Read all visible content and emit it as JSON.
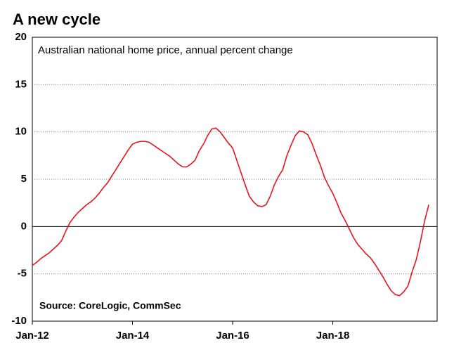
{
  "chart_data": {
    "type": "line",
    "title": "A new cycle",
    "subtitle": "Australian national home price, annual percent change",
    "annotation": "Source: CoreLogic, CommSec",
    "x": [
      "2012-01",
      "2012-02",
      "2012-03",
      "2012-04",
      "2012-05",
      "2012-06",
      "2012-07",
      "2012-08",
      "2012-09",
      "2012-10",
      "2012-11",
      "2012-12",
      "2013-01",
      "2013-02",
      "2013-03",
      "2013-04",
      "2013-05",
      "2013-06",
      "2013-07",
      "2013-08",
      "2013-09",
      "2013-10",
      "2013-11",
      "2013-12",
      "2014-01",
      "2014-02",
      "2014-03",
      "2014-04",
      "2014-05",
      "2014-06",
      "2014-07",
      "2014-08",
      "2014-09",
      "2014-10",
      "2014-11",
      "2014-12",
      "2015-01",
      "2015-02",
      "2015-03",
      "2015-04",
      "2015-05",
      "2015-06",
      "2015-07",
      "2015-08",
      "2015-09",
      "2015-10",
      "2015-11",
      "2015-12",
      "2016-01",
      "2016-02",
      "2016-03",
      "2016-04",
      "2016-05",
      "2016-06",
      "2016-07",
      "2016-08",
      "2016-09",
      "2016-10",
      "2016-11",
      "2016-12",
      "2017-01",
      "2017-02",
      "2017-03",
      "2017-04",
      "2017-05",
      "2017-06",
      "2017-07",
      "2017-08",
      "2017-09",
      "2017-10",
      "2017-11",
      "2017-12",
      "2018-01",
      "2018-02",
      "2018-03",
      "2018-04",
      "2018-05",
      "2018-06",
      "2018-07",
      "2018-08",
      "2018-09",
      "2018-10",
      "2018-11",
      "2018-12",
      "2019-01",
      "2019-02",
      "2019-03",
      "2019-04",
      "2019-05",
      "2019-06",
      "2019-07",
      "2019-08",
      "2019-09",
      "2019-10",
      "2019-11",
      "2019-12"
    ],
    "series": [
      {
        "color": "#e8141c",
        "values": [
          -4.1,
          -3.8,
          -3.4,
          -3.1,
          -2.8,
          -2.4,
          -2.0,
          -1.5,
          -0.5,
          0.4,
          1.0,
          1.5,
          1.9,
          2.3,
          2.6,
          3.0,
          3.5,
          4.1,
          4.6,
          5.3,
          6.0,
          6.7,
          7.4,
          8.1,
          8.7,
          8.9,
          9.0,
          9.0,
          8.9,
          8.6,
          8.3,
          8.0,
          7.7,
          7.4,
          7.0,
          6.6,
          6.3,
          6.3,
          6.6,
          7.0,
          8.0,
          8.7,
          9.6,
          10.3,
          10.4,
          10.0,
          9.4,
          8.8,
          8.3,
          7.0,
          5.7,
          4.4,
          3.2,
          2.6,
          2.2,
          2.1,
          2.3,
          3.2,
          4.4,
          5.3,
          6.0,
          7.5,
          8.6,
          9.6,
          10.1,
          10.0,
          9.7,
          8.8,
          7.6,
          6.5,
          5.2,
          4.3,
          3.5,
          2.5,
          1.4,
          0.6,
          -0.3,
          -1.2,
          -1.9,
          -2.4,
          -2.9,
          -3.3,
          -3.9,
          -4.6,
          -5.3,
          -6.1,
          -6.8,
          -7.2,
          -7.3,
          -6.9,
          -6.3,
          -4.8,
          -3.5,
          -1.6,
          0.6,
          2.3
        ]
      }
    ],
    "xlim": [
      "2012-01",
      "2020-02"
    ],
    "xticks": [
      {
        "value": "2012-01",
        "label": "Jan-12"
      },
      {
        "value": "2014-01",
        "label": "Jan-14"
      },
      {
        "value": "2016-01",
        "label": "Jan-16"
      },
      {
        "value": "2018-01",
        "label": "Jan-18"
      }
    ],
    "ylim": [
      -10,
      20
    ],
    "yticks": [
      -10,
      -5,
      0,
      5,
      10,
      15,
      20
    ],
    "grid": true
  }
}
